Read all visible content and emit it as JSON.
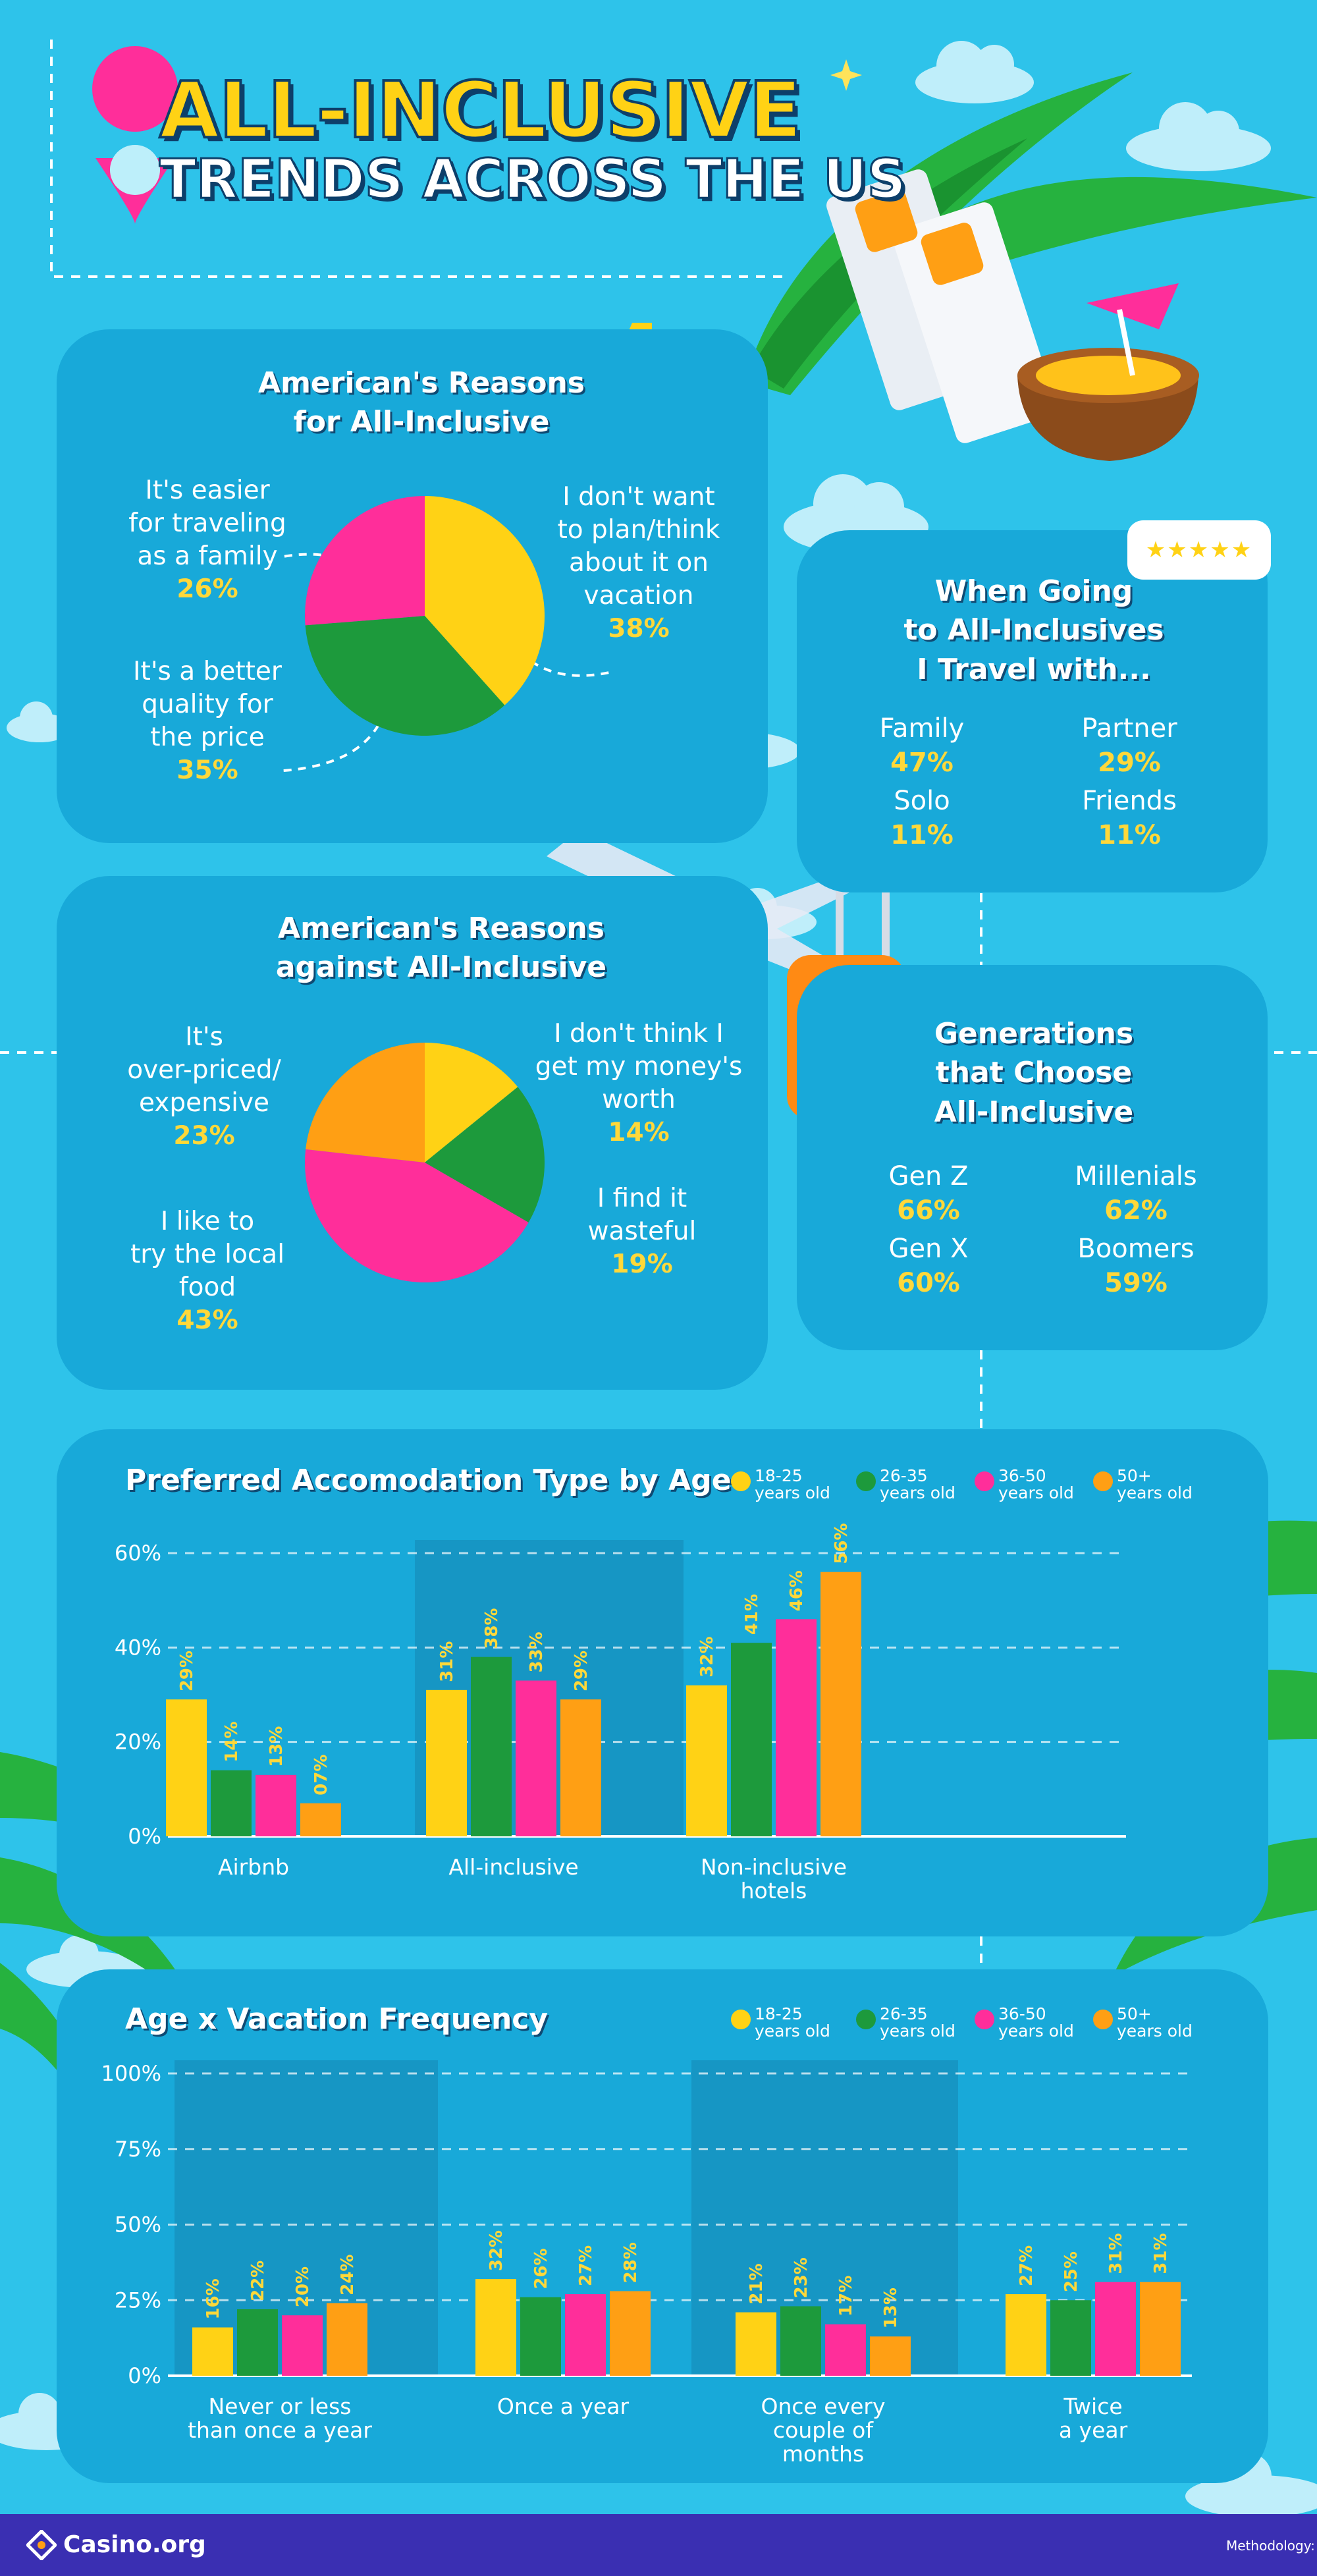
{
  "header": {
    "title_line1": "ALL-INCLUSIVE",
    "title_line2": "TRENDS ACROSS THE US"
  },
  "colors": {
    "background": "#2ec3ea",
    "panel": "#18a9d9",
    "yellow": "#ffd215",
    "green": "#1d9a3c",
    "pink": "#ff2e9a",
    "orange": "#ff9f14",
    "footer": "#3a2fb2"
  },
  "reasons_for": {
    "title_line1": "American's Reasons",
    "title_line2": "for All-Inclusive",
    "slices": [
      {
        "label_lines": [
          "I don't want",
          "to plan/think",
          "about it on",
          "vacation"
        ],
        "value": 38,
        "value_text": "38%"
      },
      {
        "label_lines": [
          "It's a better",
          "quality for",
          "the price"
        ],
        "value": 35,
        "value_text": "35%"
      },
      {
        "label_lines": [
          "It's easier",
          "for traveling",
          "as a family"
        ],
        "value": 26,
        "value_text": "26%"
      }
    ]
  },
  "reasons_against": {
    "title_line1": "American's Reasons",
    "title_line2": "against All-Inclusive",
    "slices": [
      {
        "label_lines": [
          "I don't think I",
          "get my money's",
          "worth"
        ],
        "value": 14,
        "value_text": "14%"
      },
      {
        "label_lines": [
          "I find it",
          "wasteful"
        ],
        "value": 19,
        "value_text": "19%"
      },
      {
        "label_lines": [
          "I like to",
          "try the local",
          "food"
        ],
        "value": 43,
        "value_text": "43%"
      },
      {
        "label_lines": [
          "It's",
          "over-priced/",
          "expensive"
        ],
        "value": 23,
        "value_text": "23%"
      }
    ]
  },
  "travel_with": {
    "rating_stars": "★★★★★",
    "title_line1": "When Going",
    "title_line2": "to All-Inclusives",
    "title_line3": "I Travel with...",
    "items": [
      {
        "label": "Family",
        "value": "47%"
      },
      {
        "label": "Partner",
        "value": "29%"
      },
      {
        "label": "Solo",
        "value": "11%"
      },
      {
        "label": "Friends",
        "value": "11%"
      }
    ]
  },
  "generations": {
    "title_line1": "Generations",
    "title_line2": "that Choose",
    "title_line3": "All-Inclusive",
    "items": [
      {
        "label": "Gen Z",
        "value": "66%"
      },
      {
        "label": "Millenials",
        "value": "62%"
      },
      {
        "label": "Gen X",
        "value": "60%"
      },
      {
        "label": "Boomers",
        "value": "59%"
      }
    ]
  },
  "legend": [
    {
      "line1": "18-25",
      "line2": "years old"
    },
    {
      "line1": "26-35",
      "line2": "years old"
    },
    {
      "line1": "36-50",
      "line2": "years old"
    },
    {
      "line1": "50+",
      "line2": "years old"
    }
  ],
  "chart_data": [
    {
      "type": "bar",
      "title": "Preferred Accomodation Type by Age",
      "categories": [
        [
          "Airbnb"
        ],
        [
          "All-inclusive"
        ],
        [
          "Non-inclusive",
          "hotels"
        ]
      ],
      "series": [
        {
          "name": "18-25 years old",
          "values": [
            29,
            31,
            32
          ],
          "labels": [
            "29%",
            "31%",
            "32%"
          ]
        },
        {
          "name": "26-35 years old",
          "values": [
            14,
            38,
            41
          ],
          "labels": [
            "14%",
            "38%",
            "41%"
          ]
        },
        {
          "name": "36-50 years old",
          "values": [
            13,
            33,
            46
          ],
          "labels": [
            "13%",
            "33%",
            "46%"
          ]
        },
        {
          "name": "50+ years old",
          "values": [
            7,
            29,
            56
          ],
          "labels": [
            "07%",
            "29%",
            "56%"
          ]
        }
      ],
      "yticks": [
        "0%",
        "20%",
        "40%",
        "60%"
      ],
      "ylim": [
        0,
        60
      ],
      "grid": true
    },
    {
      "type": "bar",
      "title": "Age x Vacation Frequency",
      "categories": [
        [
          "Never or less",
          "than once a year"
        ],
        [
          "Once a year"
        ],
        [
          "Once every",
          "couple of",
          "months"
        ],
        [
          "Twice",
          "a year"
        ]
      ],
      "series": [
        {
          "name": "18-25 years old",
          "values": [
            16,
            32,
            21,
            27
          ],
          "labels": [
            "16%",
            "32%",
            "21%",
            "27%"
          ]
        },
        {
          "name": "26-35 years old",
          "values": [
            22,
            26,
            23,
            25
          ],
          "labels": [
            "22%",
            "26%",
            "23%",
            "25%"
          ]
        },
        {
          "name": "36-50 years old",
          "values": [
            20,
            27,
            17,
            31
          ],
          "labels": [
            "20%",
            "27%",
            "17%",
            "31%"
          ]
        },
        {
          "name": "50+ years old",
          "values": [
            24,
            28,
            13,
            31
          ],
          "labels": [
            "24%",
            "28%",
            "13%",
            "31%"
          ]
        }
      ],
      "yticks": [
        "0%",
        "25%",
        "50%",
        "75%",
        "100%"
      ],
      "ylim": [
        0,
        100
      ],
      "grid": true
    }
  ],
  "footer": {
    "brand": "Casino.org",
    "note": "Methodology:"
  }
}
